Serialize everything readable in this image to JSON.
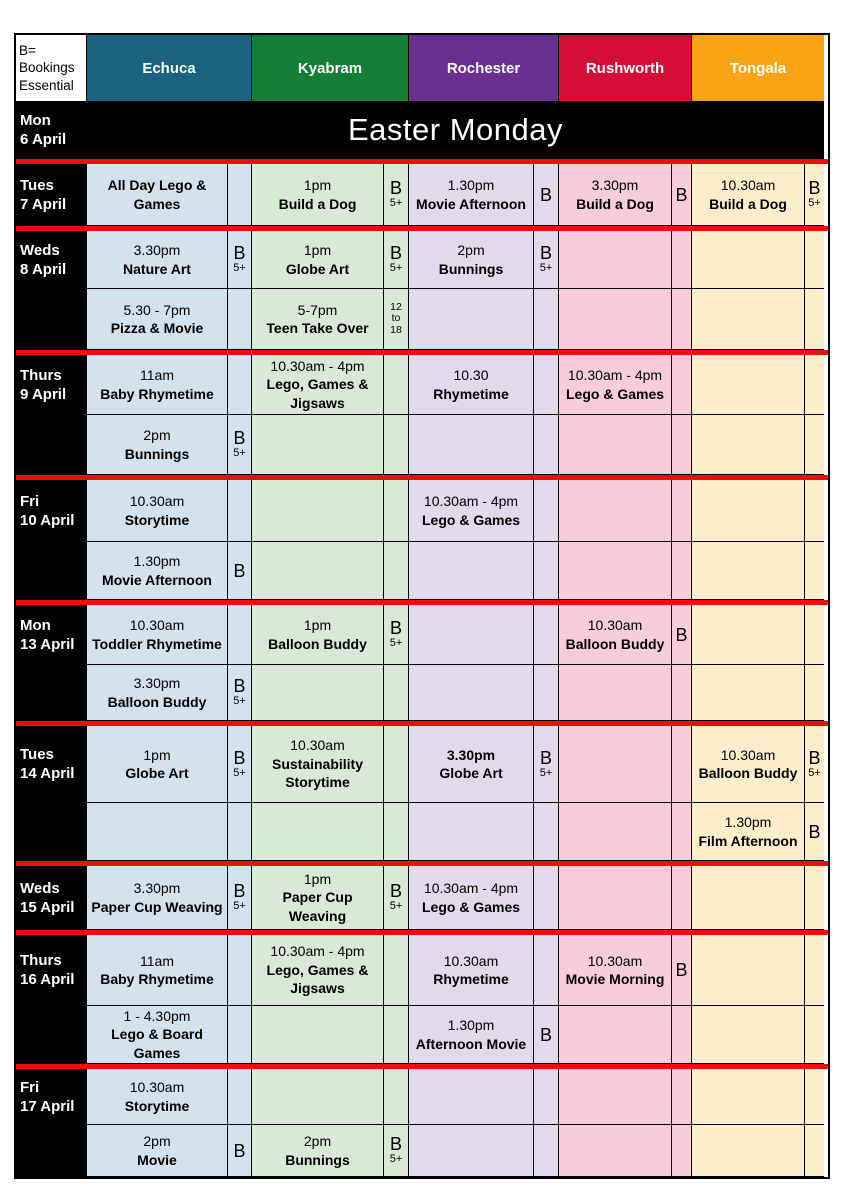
{
  "legend": {
    "lines": [
      "B=",
      "Bookings",
      "Essential"
    ]
  },
  "easter": {
    "day": "Mon",
    "date": "6 April",
    "label": "Easter Monday"
  },
  "badge_glyphs": {
    "b": "B",
    "five_plus": "5+",
    "age_12": "12",
    "age_to": "to",
    "age_18": "18"
  },
  "colors": {
    "red_separator": "#f20d0d",
    "grid_line": "#000000",
    "date_column_bg": "#000000",
    "date_text": "#ffffff"
  },
  "towns": [
    {
      "name": "Echuca",
      "header_bg": "#1a6380",
      "body_bg": "#d2e2ef"
    },
    {
      "name": "Kyabram",
      "header_bg": "#147e36",
      "body_bg": "#d8e9d5"
    },
    {
      "name": "Rochester",
      "header_bg": "#6a3091",
      "body_bg": "#e1d9ec"
    },
    {
      "name": "Rushworth",
      "header_bg": "#d50e38",
      "body_bg": "#f8ccd8"
    },
    {
      "name": "Tongala",
      "header_bg": "#faa415",
      "body_bg": "#fcedcb"
    }
  ],
  "days": [
    {
      "day": "Tues",
      "date": "7 April",
      "rows": [
        [
          {
            "time": "",
            "name": "All Day Lego &\nGames",
            "badge": ""
          },
          {
            "time": "1pm",
            "name": "Build a Dog",
            "badge": "B5+"
          },
          {
            "time": "1.30pm",
            "name": "Movie Afternoon",
            "badge": "B"
          },
          {
            "time": "3.30pm",
            "name": "Build a Dog",
            "badge": "B"
          },
          {
            "time": "10.30am",
            "name": "Build a Dog",
            "badge": "B5+"
          }
        ]
      ]
    },
    {
      "day": "Weds",
      "date": "8 April",
      "rows": [
        [
          {
            "time": "3.30pm",
            "name": "Nature Art",
            "badge": "B5+"
          },
          {
            "time": "1pm",
            "name": "Globe Art",
            "badge": "B5+"
          },
          {
            "time": "2pm",
            "name": "Bunnings",
            "badge": "B5+"
          },
          null,
          null
        ],
        [
          {
            "time": "5.30 - 7pm",
            "name": "Pizza & Movie",
            "badge": ""
          },
          {
            "time": "5-7pm",
            "name": "Teen Take Over",
            "badge": "12-18"
          },
          null,
          null,
          null
        ]
      ]
    },
    {
      "day": "Thurs",
      "date": "9 April",
      "rows": [
        [
          {
            "time": "11am",
            "name": "Baby Rhymetime",
            "badge": ""
          },
          {
            "time": "10.30am - 4pm",
            "name": "Lego, Games &\nJigsaws",
            "badge": ""
          },
          {
            "time": "10.30",
            "name": "Rhymetime",
            "badge": ""
          },
          {
            "time": "10.30am - 4pm",
            "name": "Lego & Games",
            "badge": ""
          },
          null
        ],
        [
          {
            "time": "2pm",
            "name": "Bunnings",
            "badge": "B5+"
          },
          null,
          null,
          null,
          null
        ]
      ]
    },
    {
      "day": "Fri",
      "date": "10 April",
      "rows": [
        [
          {
            "time": "10.30am",
            "name": "Storytime",
            "badge": ""
          },
          null,
          {
            "time": "10.30am - 4pm",
            "name": "Lego & Games",
            "badge": ""
          },
          null,
          null
        ],
        [
          {
            "time": "1.30pm",
            "name": "Movie Afternoon",
            "badge": "B"
          },
          null,
          null,
          null,
          null
        ]
      ]
    },
    {
      "day": "Mon",
      "date": "13 April",
      "rows": [
        [
          {
            "time": "10.30am",
            "name": "Toddler Rhymetime",
            "badge": ""
          },
          {
            "time": "1pm",
            "name": "Balloon Buddy",
            "badge": "B5+"
          },
          null,
          {
            "time": "10.30am",
            "name": "Balloon Buddy",
            "badge": "B"
          },
          null
        ],
        [
          {
            "time": "3.30pm",
            "name": "Balloon Buddy",
            "badge": "B5+"
          },
          null,
          null,
          null,
          null
        ]
      ]
    },
    {
      "day": "Tues",
      "date": "14 April",
      "rows": [
        [
          {
            "time": "1pm",
            "name": "Globe Art",
            "badge": "B5+"
          },
          {
            "time": "10.30am",
            "name": "Sustainability\nStorytime",
            "badge": ""
          },
          {
            "time": "3.30pm",
            "name": "Globe Art",
            "badge": "B5+",
            "time_bold": true
          },
          null,
          {
            "time": "10.30am",
            "name": "Balloon Buddy",
            "badge": "B5+"
          }
        ],
        [
          null,
          null,
          null,
          null,
          {
            "time": "1.30pm",
            "name": "Film Afternoon",
            "badge": "B"
          }
        ]
      ]
    },
    {
      "day": "Weds",
      "date": "15 April",
      "rows": [
        [
          {
            "time": "3.30pm",
            "name": "Paper Cup Weaving",
            "badge": "B5+"
          },
          {
            "time": "1pm",
            "name": "Paper Cup\nWeaving",
            "badge": "B5+"
          },
          {
            "time": "10.30am - 4pm",
            "name": "Lego & Games",
            "badge": ""
          },
          null,
          null
        ]
      ]
    },
    {
      "day": "Thurs",
      "date": "16 April",
      "rows": [
        [
          {
            "time": "11am",
            "name": "Baby Rhymetime",
            "badge": ""
          },
          {
            "time": "10.30am - 4pm",
            "name": "Lego, Games &\nJigsaws",
            "badge": ""
          },
          {
            "time": "10.30am",
            "name": "Rhymetime",
            "badge": ""
          },
          {
            "time": "10.30am",
            "name": "Movie Morning",
            "badge": "B"
          },
          null
        ],
        [
          {
            "time": "1 - 4.30pm",
            "name": "Lego & Board\nGames",
            "badge": ""
          },
          null,
          {
            "time": "1.30pm",
            "name": "Afternoon Movie",
            "badge": "B"
          },
          null,
          null
        ]
      ]
    },
    {
      "day": "Fri",
      "date": "17 April",
      "rows": [
        [
          {
            "time": "10.30am",
            "name": "Storytime",
            "badge": ""
          },
          null,
          null,
          null,
          null
        ],
        [
          {
            "time": "2pm",
            "name": "Movie",
            "badge": "B"
          },
          {
            "time": "2pm",
            "name": "Bunnings",
            "badge": "B5+"
          },
          null,
          null,
          null
        ]
      ]
    }
  ]
}
